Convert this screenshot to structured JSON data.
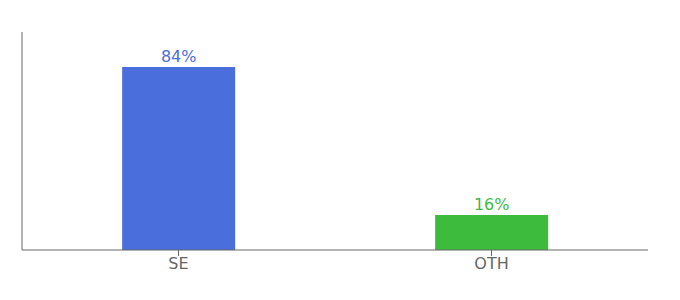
{
  "chart_data": {
    "type": "bar",
    "categories": [
      "SE",
      "OTH"
    ],
    "values": [
      84,
      16
    ],
    "value_labels": [
      "84%",
      "16%"
    ],
    "colors": [
      "#4a6edb",
      "#3dbb3d"
    ],
    "ylim": [
      0,
      100
    ],
    "yticks": [],
    "grid": false,
    "data_labels": true,
    "tick_labels": "x"
  }
}
